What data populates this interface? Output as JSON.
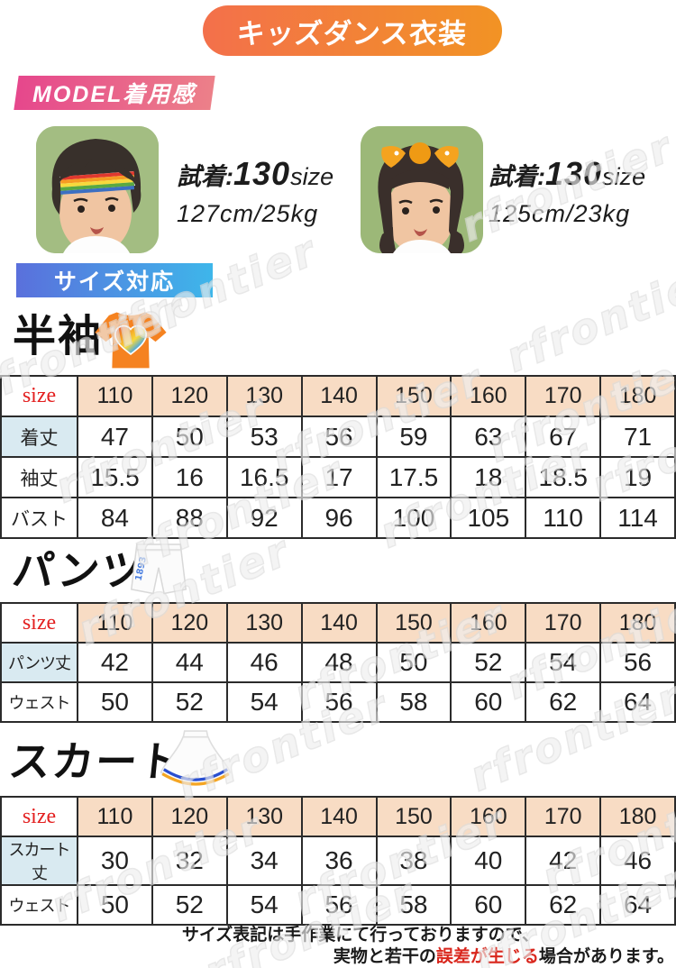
{
  "banner": {
    "title": "キッズダンス衣装"
  },
  "model_section": {
    "label": "MODEL着用感",
    "models": [
      {
        "fit_prefix": "試着:",
        "fit_size": "130",
        "fit_suffix": "size",
        "body_spec": "127cm/25kg"
      },
      {
        "fit_prefix": "試着:",
        "fit_size": "130",
        "fit_suffix": "size",
        "body_spec": "125cm/23kg"
      }
    ]
  },
  "size_section": {
    "label": "サイズ対応"
  },
  "watermark": {
    "text": "rfrontier"
  },
  "tables": [
    {
      "heading": "半袖",
      "corner_label": "size",
      "sizes": [
        "110",
        "120",
        "130",
        "140",
        "150",
        "160",
        "170",
        "180"
      ],
      "rows": [
        {
          "label": "着丈",
          "highlight": true,
          "values": [
            "47",
            "50",
            "53",
            "56",
            "59",
            "63",
            "67",
            "71"
          ]
        },
        {
          "label": "袖丈",
          "highlight": false,
          "values": [
            "15.5",
            "16",
            "16.5",
            "17",
            "17.5",
            "18",
            "18.5",
            "19"
          ]
        },
        {
          "label": "バスト",
          "highlight": false,
          "values": [
            "84",
            "88",
            "92",
            "96",
            "100",
            "105",
            "110",
            "114"
          ]
        }
      ]
    },
    {
      "heading": "パンツ",
      "corner_label": "size",
      "sizes": [
        "110",
        "120",
        "130",
        "140",
        "150",
        "160",
        "170",
        "180"
      ],
      "rows": [
        {
          "label": "パンツ丈",
          "highlight": true,
          "values": [
            "42",
            "44",
            "46",
            "48",
            "50",
            "52",
            "54",
            "56"
          ]
        },
        {
          "label": "ウェスト",
          "highlight": false,
          "values": [
            "50",
            "52",
            "54",
            "56",
            "58",
            "60",
            "62",
            "64"
          ]
        }
      ]
    },
    {
      "heading": "スカート",
      "corner_label": "size",
      "sizes": [
        "110",
        "120",
        "130",
        "140",
        "150",
        "160",
        "170",
        "180"
      ],
      "rows": [
        {
          "label": "スカート丈",
          "highlight": true,
          "values": [
            "30",
            "32",
            "34",
            "36",
            "38",
            "40",
            "42",
            "46"
          ]
        },
        {
          "label": "ウェスト",
          "highlight": false,
          "values": [
            "50",
            "52",
            "54",
            "56",
            "58",
            "60",
            "62",
            "64"
          ]
        }
      ]
    }
  ],
  "footer": {
    "line1": "サイズ表記は手作業にて行っておりますので、",
    "line2_pre": "実物と若干の",
    "line2_red": "誤差が生じる",
    "line2_post": "場合があります。"
  }
}
